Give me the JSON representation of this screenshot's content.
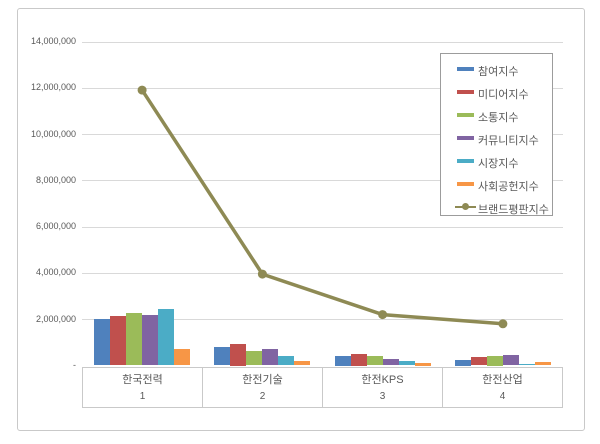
{
  "chart_data": {
    "type": "bar+line combo",
    "title": "",
    "categories": [
      "한국전력",
      "한전기술",
      "한전KPS",
      "한전산업"
    ],
    "category_numbers": [
      "1",
      "2",
      "3",
      "4"
    ],
    "bar_series": [
      {
        "name": "참여지수",
        "color": "#4F81BD",
        "values": [
          2000000,
          780000,
          430000,
          260000
        ]
      },
      {
        "name": "미디어지수",
        "color": "#C0504D",
        "values": [
          2150000,
          950000,
          520000,
          380000
        ]
      },
      {
        "name": "소통지수",
        "color": "#9BBB59",
        "values": [
          2250000,
          620000,
          400000,
          430000
        ]
      },
      {
        "name": "커뮤니티지수",
        "color": "#8064A2",
        "values": [
          2170000,
          720000,
          290000,
          470000
        ]
      },
      {
        "name": "시장지수",
        "color": "#4BACC6",
        "values": [
          2450000,
          420000,
          210000,
          50000
        ]
      },
      {
        "name": "사회공헌지수",
        "color": "#F79646",
        "values": [
          720000,
          190000,
          130000,
          170000
        ]
      }
    ],
    "line_series": {
      "name": "브랜드평판지수",
      "color": "#8E8A54",
      "values": [
        11900000,
        3950000,
        2200000,
        1800000
      ]
    },
    "y_axis": {
      "min": 0,
      "max": 14000000,
      "step": 2000000,
      "tick_labels": [
        "-",
        "2,000,000",
        "4,000,000",
        "6,000,000",
        "8,000,000",
        "10,000,000",
        "12,000,000",
        "14,000,000"
      ]
    },
    "grid": true,
    "legend_position": "top-right",
    "colors": {
      "gridline": "#d9d9d9",
      "axis_border": "#c9c9c9",
      "legend_border": "#9c9c9c",
      "text": "#595959",
      "frame_border": "#c9c9c9"
    }
  }
}
